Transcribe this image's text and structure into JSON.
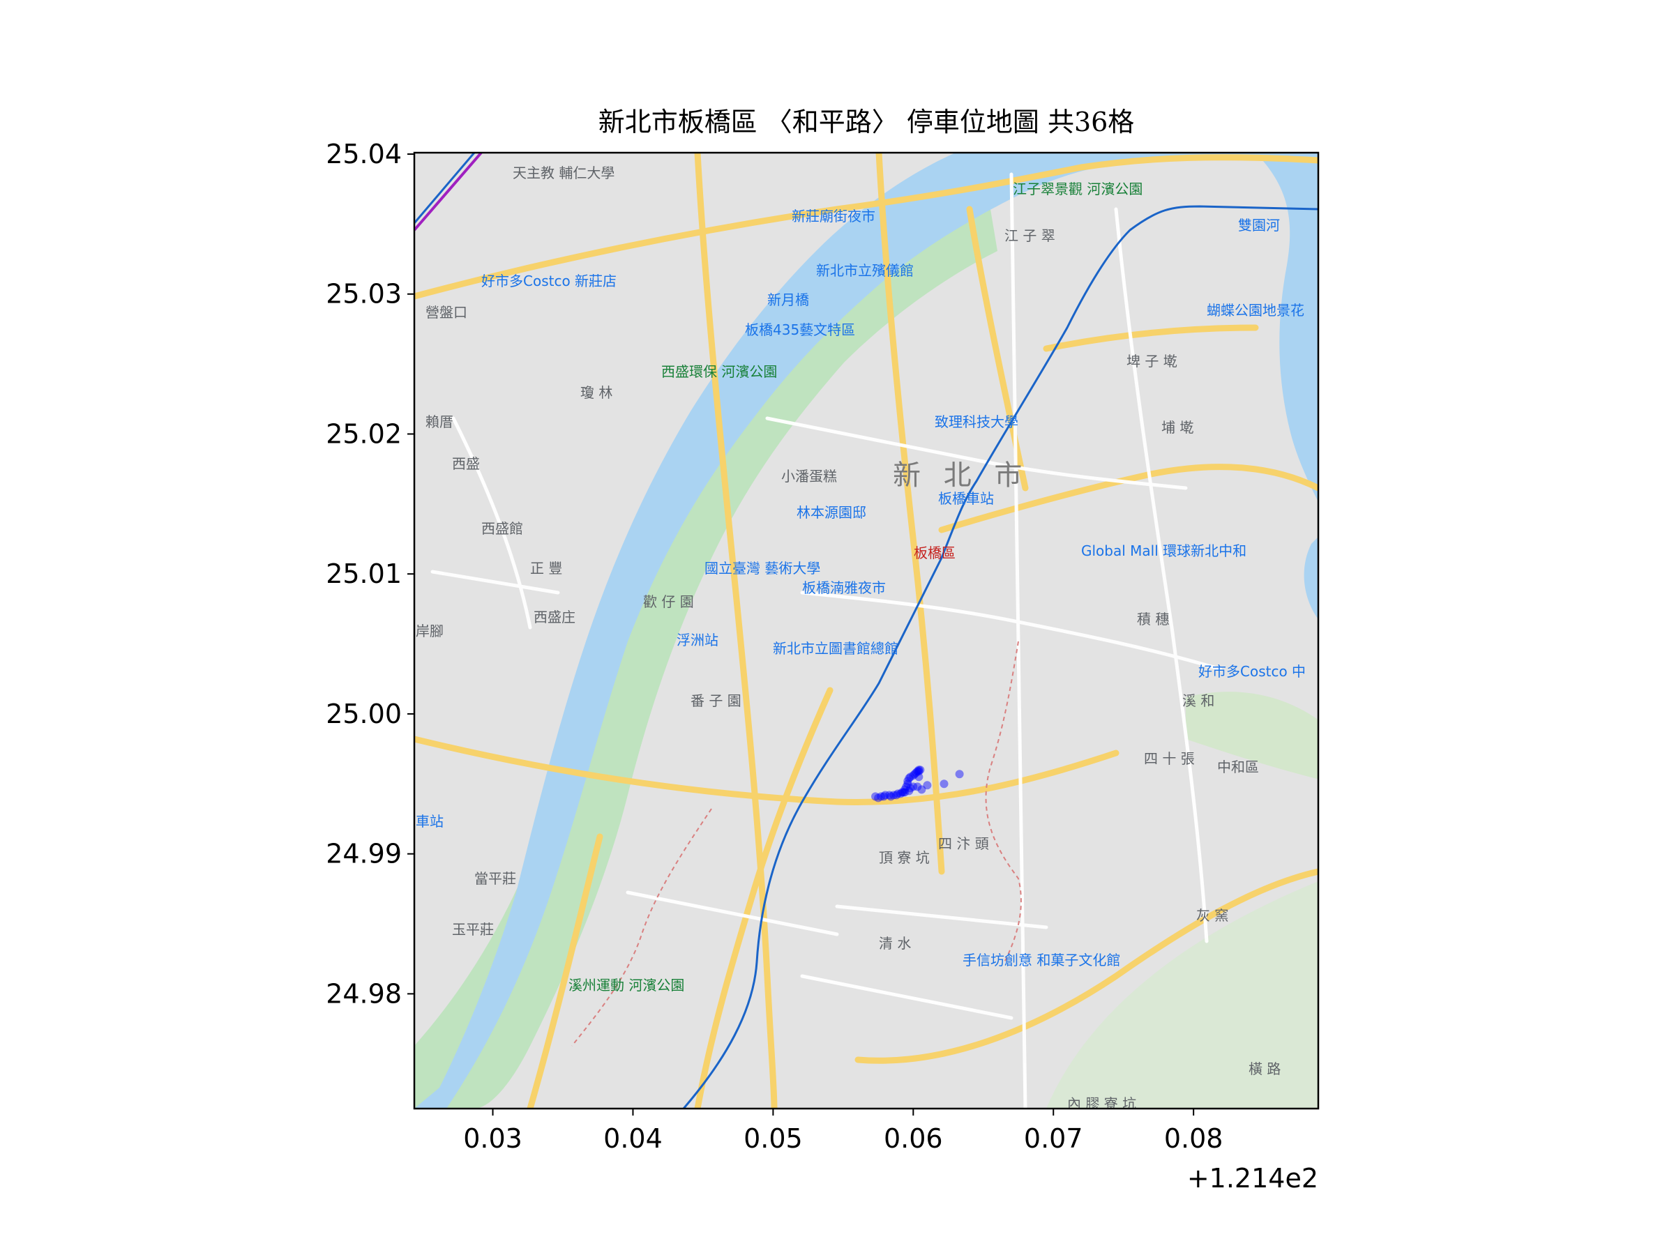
{
  "chart_data": {
    "type": "scatter",
    "title": "新北市板橋區 〈和平路〉 停車位地圖 共36格",
    "xlabel": "",
    "ylabel": "",
    "xlim": [
      121.4244,
      121.4889
    ],
    "ylim": [
      24.9718,
      25.0401
    ],
    "x_offset_label": "+1.214e2",
    "x_ticks": [
      {
        "value": 121.43,
        "label": "0.03"
      },
      {
        "value": 121.44,
        "label": "0.04"
      },
      {
        "value": 121.45,
        "label": "0.05"
      },
      {
        "value": 121.46,
        "label": "0.06"
      },
      {
        "value": 121.47,
        "label": "0.07"
      },
      {
        "value": 121.48,
        "label": "0.08"
      }
    ],
    "y_ticks": [
      {
        "value": 24.98,
        "label": "24.98"
      },
      {
        "value": 24.99,
        "label": "24.99"
      },
      {
        "value": 25.0,
        "label": "25.00"
      },
      {
        "value": 25.01,
        "label": "25.01"
      },
      {
        "value": 25.02,
        "label": "25.02"
      },
      {
        "value": 25.03,
        "label": "25.03"
      },
      {
        "value": 25.04,
        "label": "25.04"
      }
    ],
    "grid": false,
    "background": "map",
    "marker_color": "#0000ff",
    "series": [
      {
        "points": [
          {
            "x": 121.4573,
            "y": 24.9941
          },
          {
            "x": 121.4577,
            "y": 24.9941
          },
          {
            "x": 121.458,
            "y": 24.9942
          },
          {
            "x": 121.4583,
            "y": 24.9942
          },
          {
            "x": 121.4586,
            "y": 24.9942
          },
          {
            "x": 121.4589,
            "y": 24.9943
          },
          {
            "x": 121.4591,
            "y": 24.9943
          },
          {
            "x": 121.4593,
            "y": 24.9944
          },
          {
            "x": 121.4594,
            "y": 24.9946
          },
          {
            "x": 121.4595,
            "y": 24.9948
          },
          {
            "x": 121.4596,
            "y": 24.995
          },
          {
            "x": 121.4596,
            "y": 24.9952
          },
          {
            "x": 121.4597,
            "y": 24.9954
          },
          {
            "x": 121.4598,
            "y": 24.9955
          },
          {
            "x": 121.46,
            "y": 24.9956
          },
          {
            "x": 121.4601,
            "y": 24.9957
          },
          {
            "x": 121.4602,
            "y": 24.9958
          },
          {
            "x": 121.4603,
            "y": 24.9959
          },
          {
            "x": 121.4604,
            "y": 24.9959
          },
          {
            "x": 121.4604,
            "y": 24.996
          },
          {
            "x": 121.4605,
            "y": 24.996
          },
          {
            "x": 121.4603,
            "y": 24.9948
          },
          {
            "x": 121.46,
            "y": 24.9948
          },
          {
            "x": 121.4597,
            "y": 24.9945
          },
          {
            "x": 121.4594,
            "y": 24.9944
          },
          {
            "x": 121.4592,
            "y": 24.9944
          },
          {
            "x": 121.4606,
            "y": 24.9946
          },
          {
            "x": 121.461,
            "y": 24.9949
          },
          {
            "x": 121.4622,
            "y": 24.995
          },
          {
            "x": 121.4633,
            "y": 24.9957
          },
          {
            "x": 121.4575,
            "y": 24.994
          },
          {
            "x": 121.4579,
            "y": 24.9941
          },
          {
            "x": 121.4584,
            "y": 24.9941
          },
          {
            "x": 121.4588,
            "y": 24.9942
          },
          {
            "x": 121.4598,
            "y": 24.9947
          },
          {
            "x": 121.4604,
            "y": 24.9955
          }
        ]
      }
    ]
  },
  "map_labels": {
    "city": "新 北 市",
    "district": "板橋區",
    "places_gray": [
      "天主教 輔仁大學",
      "營盤口",
      "賴厝",
      "西盛",
      "西盛館",
      "正 豐",
      "西盛庄",
      "岸腳",
      "當平莊",
      "玉平莊",
      "瓊 林",
      "歡 仔 園",
      "番 子 園",
      "清 水",
      "頂 寮 坑",
      "四 汴 頭",
      "埤 子 墘",
      "埔 墘",
      "積 穗",
      "溪 和",
      "四 十 張",
      "中和區",
      "灰 窯",
      "橫 路",
      "內 膠 寮 坑",
      "江 子 翠"
    ],
    "places_green": [
      "西盛環保 河濱公園",
      "溪州運動 河濱公園",
      "江子翠景觀 河濱公園"
    ],
    "places_blue": [
      "好市多Costco 新莊店",
      "新莊廟街夜市",
      "新北市立殯儀館",
      "新月橋",
      "板橋435藝文特區",
      "致理科技大學",
      "林本源園邸",
      "國立臺灣 藝術大學",
      "板橋湳雅夜市",
      "浮洲站",
      "新北市立圖書館總館",
      "板橋車站",
      "Global Mall 環球新北中和",
      "好市多Costco 中",
      "蝴蝶公園地景花",
      "雙園河",
      "手信坊創意 和菓子文化館",
      "車站"
    ],
    "places_orange": [
      "小潘蛋糕"
    ]
  }
}
